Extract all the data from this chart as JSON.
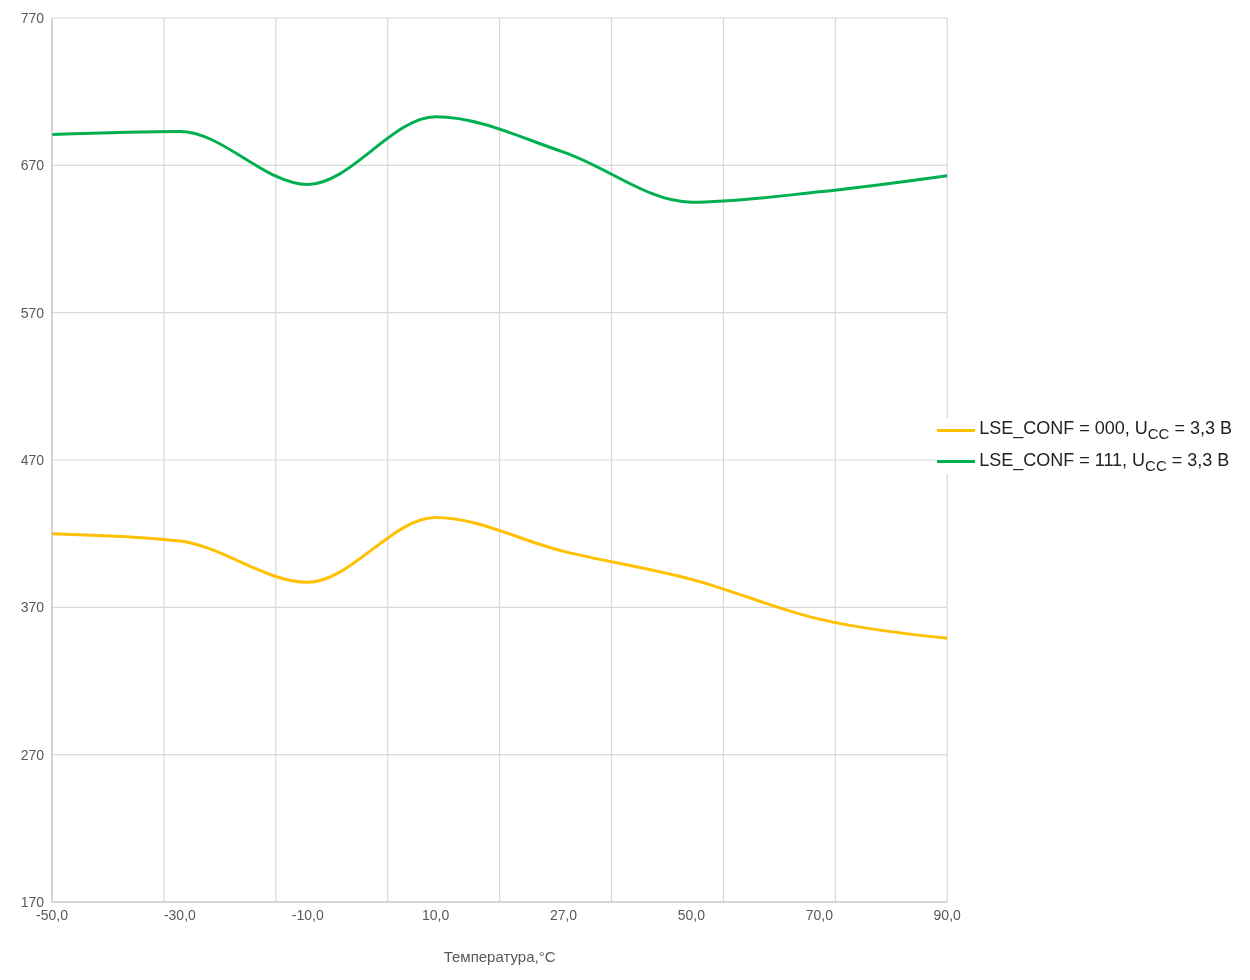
{
  "chart_data": {
    "type": "line",
    "xlabel": "Температура,°C",
    "categories": [
      "-50,0",
      "-30,0",
      "-10,0",
      "10,0",
      "27,0",
      "50,0",
      "70,0",
      "90,0"
    ],
    "series": [
      {
        "name": "LSE_CONF = 000, U$_{CC}$ = 3,3 В",
        "color": "#ffc000",
        "values": [
          420,
          415,
          387,
          431,
          408,
          389,
          362,
          349
        ]
      },
      {
        "name": "LSE_CONF = 111, U$_{CC}$ = 3,3 В",
        "color": "#00b050",
        "values": [
          691,
          693,
          657,
          703,
          679,
          645,
          652,
          663
        ]
      }
    ],
    "ylim": [
      170,
      770
    ],
    "yticks": [
      170,
      270,
      370,
      470,
      570,
      670,
      770
    ],
    "grid": true,
    "legend": "right",
    "marker": "none",
    "line_style": "solid"
  }
}
